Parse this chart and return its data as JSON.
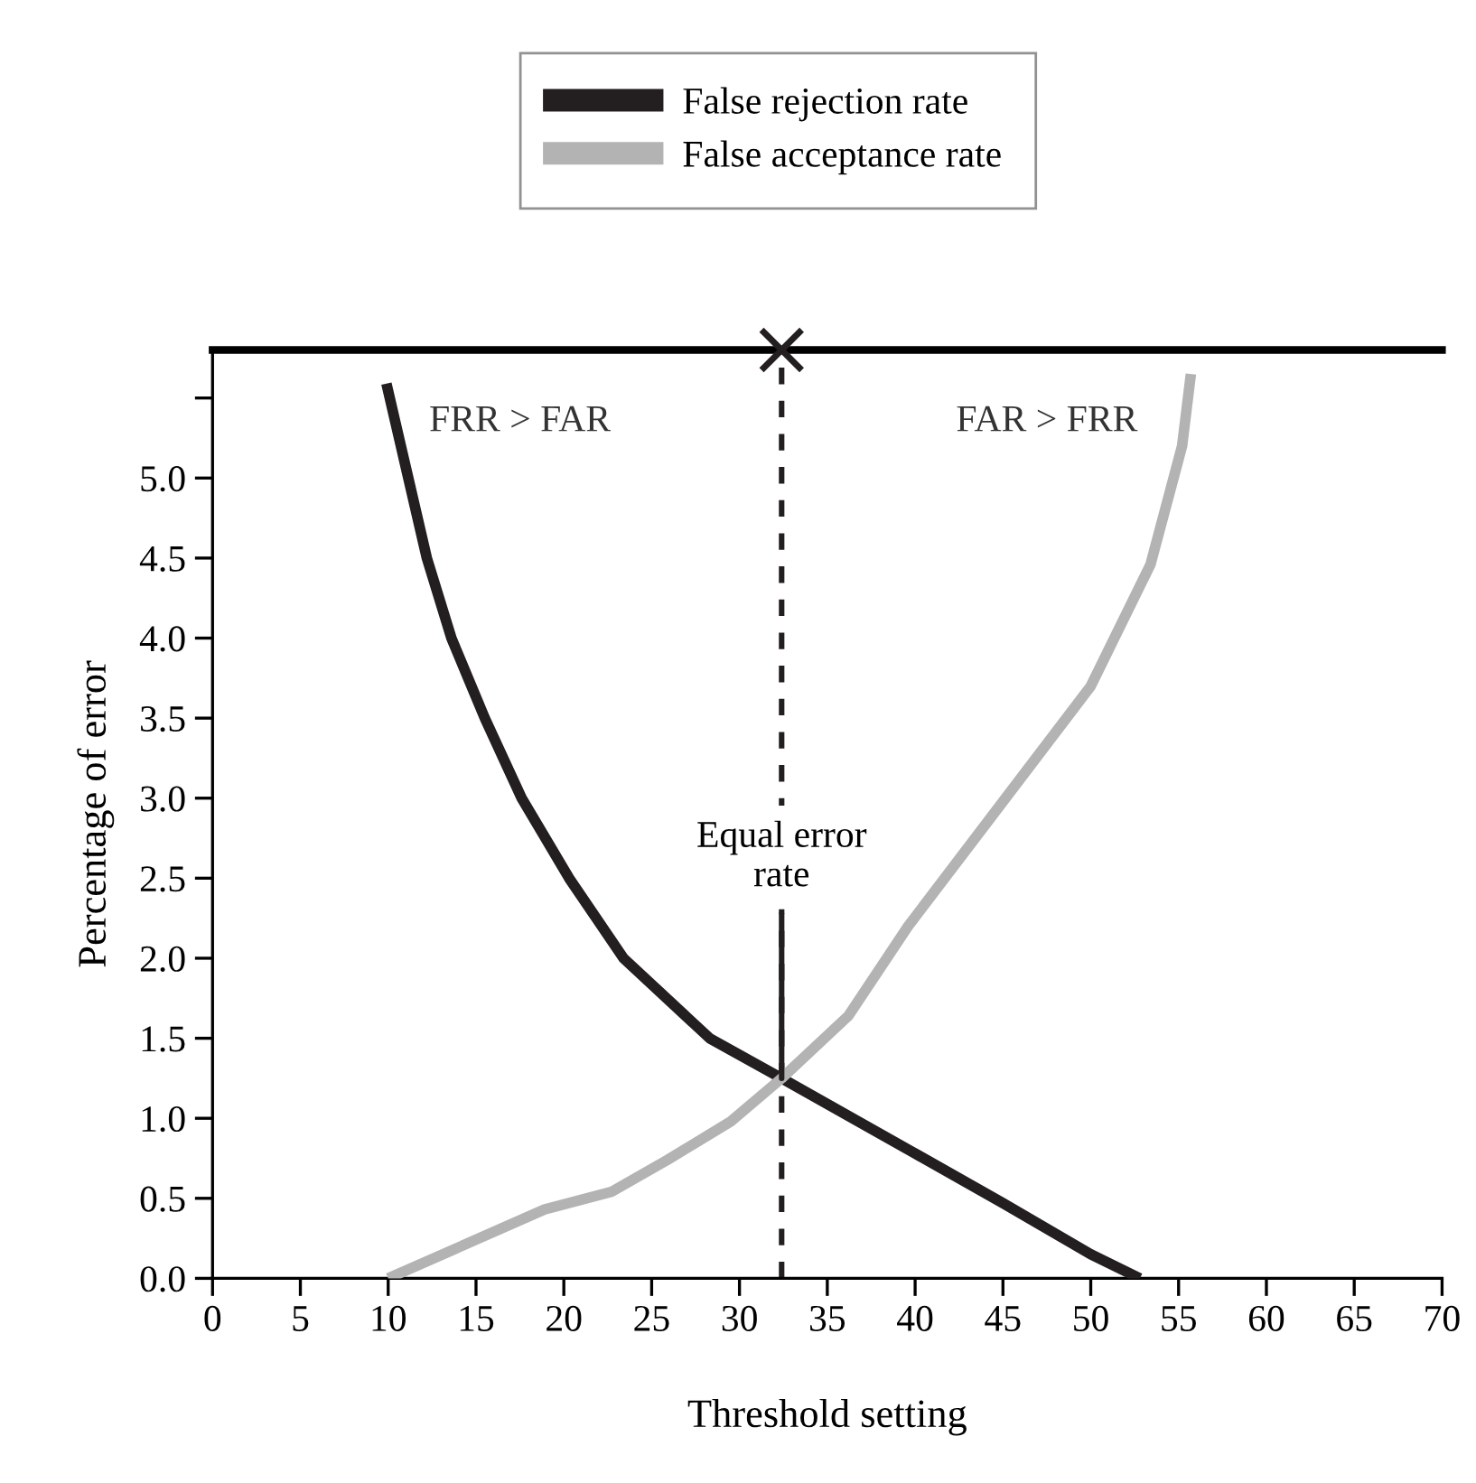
{
  "chart_data": {
    "type": "line",
    "xlabel": "Threshold setting",
    "ylabel": "Percentage of error",
    "series": [
      {
        "name": "False rejection rate",
        "color": "#231f20",
        "x": [
          9.9,
          12.2,
          13.6,
          15.5,
          17.6,
          20.3,
          23.4,
          28.3,
          32.4,
          40,
          45,
          50,
          52.8
        ],
        "values": [
          5.59,
          4.5,
          4.0,
          3.5,
          3.0,
          2.5,
          2.0,
          1.5,
          1.25,
          0.78,
          0.47,
          0.15,
          0
        ]
      },
      {
        "name": "False acceptance rate",
        "color": "#b3b3b3",
        "x": [
          10.0,
          18.9,
          22.7,
          25.9,
          29.5,
          32.4,
          36.2,
          39.6,
          44.8,
          50,
          53.4,
          55.2,
          55.7
        ],
        "values": [
          0,
          0.43,
          0.54,
          0.74,
          0.98,
          1.25,
          1.64,
          2.2,
          2.95,
          3.7,
          4.46,
          5.2,
          5.65
        ]
      }
    ],
    "xlim": [
      0,
      70
    ],
    "xticks": [
      0,
      5,
      10,
      15,
      20,
      25,
      30,
      35,
      40,
      45,
      50,
      55,
      60,
      65,
      70
    ],
    "ylim": [
      0,
      5.8
    ],
    "yticks": [
      {
        "value": 0,
        "label": "0.0"
      },
      {
        "value": 0.5,
        "label": "0.5"
      },
      {
        "value": 1,
        "label": "1.0"
      },
      {
        "value": 1.5,
        "label": "1.5"
      },
      {
        "value": 2,
        "label": "2.0"
      },
      {
        "value": 2.5,
        "label": "2.5"
      },
      {
        "value": 3,
        "label": "3.0"
      },
      {
        "value": 3.5,
        "label": "3.5"
      },
      {
        "value": 4,
        "label": "4.0"
      },
      {
        "value": 4.5,
        "label": "4.5"
      },
      {
        "value": 5,
        "label": "5.0"
      },
      {
        "value": 5.5,
        "label": null
      }
    ],
    "ref_lines": [
      {
        "axis": "x",
        "value": 32.4,
        "label": null,
        "color": "#231f20",
        "line_style": "dashed"
      }
    ],
    "annotations": [
      {
        "text": "Equal error\nrate",
        "x": 32.4,
        "y": 1.25
      },
      "FRR > FAR",
      "FAR > FRR"
    ],
    "legend": "top",
    "grid": false,
    "marker": "none",
    "line_style": "solid"
  }
}
